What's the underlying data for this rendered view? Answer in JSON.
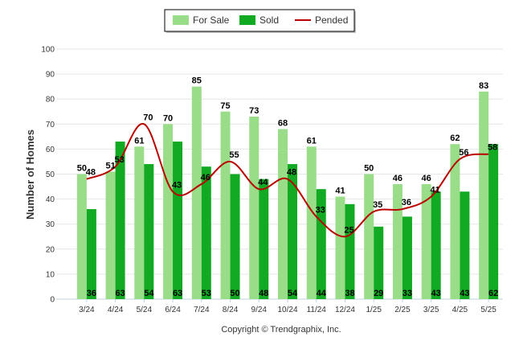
{
  "chart_data": {
    "type": "bar",
    "ylabel": "Number of Homes",
    "ylim": [
      0,
      100
    ],
    "yticks": [
      0,
      10,
      20,
      30,
      40,
      50,
      60,
      70,
      80,
      90,
      100
    ],
    "grid": true,
    "legend_position": "top-center",
    "categories": [
      "3/24",
      "4/24",
      "5/24",
      "6/24",
      "7/24",
      "8/24",
      "9/24",
      "10/24",
      "11/24",
      "12/24",
      "1/25",
      "2/25",
      "3/25",
      "4/25",
      "5/25"
    ],
    "series": [
      {
        "name": "For Sale",
        "type": "bar",
        "color": "#99dd88",
        "values": [
          50,
          51,
          61,
          70,
          85,
          75,
          73,
          68,
          61,
          41,
          50,
          46,
          46,
          62,
          83
        ]
      },
      {
        "name": "Sold",
        "type": "bar",
        "color": "#11aa22",
        "values": [
          36,
          63,
          54,
          63,
          53,
          50,
          48,
          54,
          44,
          38,
          29,
          33,
          43,
          43,
          62
        ]
      },
      {
        "name": "Pended",
        "type": "line",
        "color": "#bb0000",
        "values": [
          48,
          53,
          70,
          43,
          46,
          55,
          44,
          48,
          33,
          25,
          35,
          36,
          41,
          56,
          58
        ]
      }
    ]
  },
  "credit": "Copyright © Trendgraphix, Inc."
}
